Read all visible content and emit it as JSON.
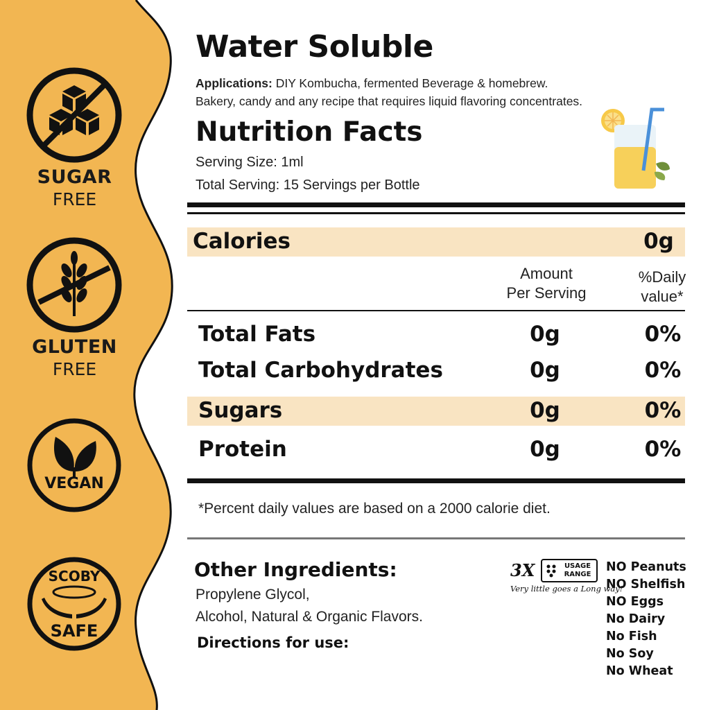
{
  "colors": {
    "sidebar": "#f2b652",
    "band": "#f9e4c2",
    "ink": "#111111"
  },
  "badges": [
    {
      "icon": "no-sugar-cubes-icon",
      "line1": "SUGAR",
      "line2": "FREE"
    },
    {
      "icon": "no-wheat-icon",
      "line1": "GLUTEN",
      "line2": "FREE"
    },
    {
      "icon": "vegan-leaves-icon",
      "label": "VEGAN"
    },
    {
      "icon": "scoby-hands-icon",
      "line1": "SCOBY",
      "line2": "SAFE"
    }
  ],
  "header": {
    "title": "Water Soluble",
    "applications_label": "Applications:",
    "applications_line1": " DIY Kombucha, fermented Beverage & homebrew.",
    "applications_line2": "Bakery, candy and any recipe that requires liquid flavoring concentrates."
  },
  "nutrition": {
    "title": "Nutrition Facts",
    "serving_size": "Serving Size: 1ml",
    "total_serving": "Total Serving: 15 Servings per Bottle",
    "calories": {
      "label": "Calories",
      "value": "0g"
    },
    "col_amount_line1": "Amount",
    "col_amount_line2": "Per Serving",
    "col_daily_line1": "%Daily",
    "col_daily_line2": "value*",
    "rows": [
      {
        "label": "Total Fats",
        "amount": "0g",
        "daily": "0%"
      },
      {
        "label": "Total Carbohydrates",
        "amount": "0g",
        "daily": "0%"
      },
      {
        "label": "Sugars",
        "amount": "0g",
        "daily": "0%"
      },
      {
        "label": "Protein",
        "amount": "0g",
        "daily": "0%"
      }
    ],
    "footnote": "*Percent daily values are based on a 2000 calorie diet."
  },
  "ingredients": {
    "title": "Other Ingredients:",
    "line1": "Propylene Glycol,",
    "line2": "Alcohol, Natural & Organic Flavors.",
    "directions": "Directions for use:"
  },
  "usage": {
    "multiplier": "3X",
    "box_line1": "USAGE",
    "box_line2": "RANGE",
    "tagline": "Very little goes a Long way!"
  },
  "allergens": [
    "NO Peanuts",
    "NO Shelfish",
    "NO Eggs",
    "No Dairy",
    "No Fish",
    "No Soy",
    "No Wheat"
  ]
}
